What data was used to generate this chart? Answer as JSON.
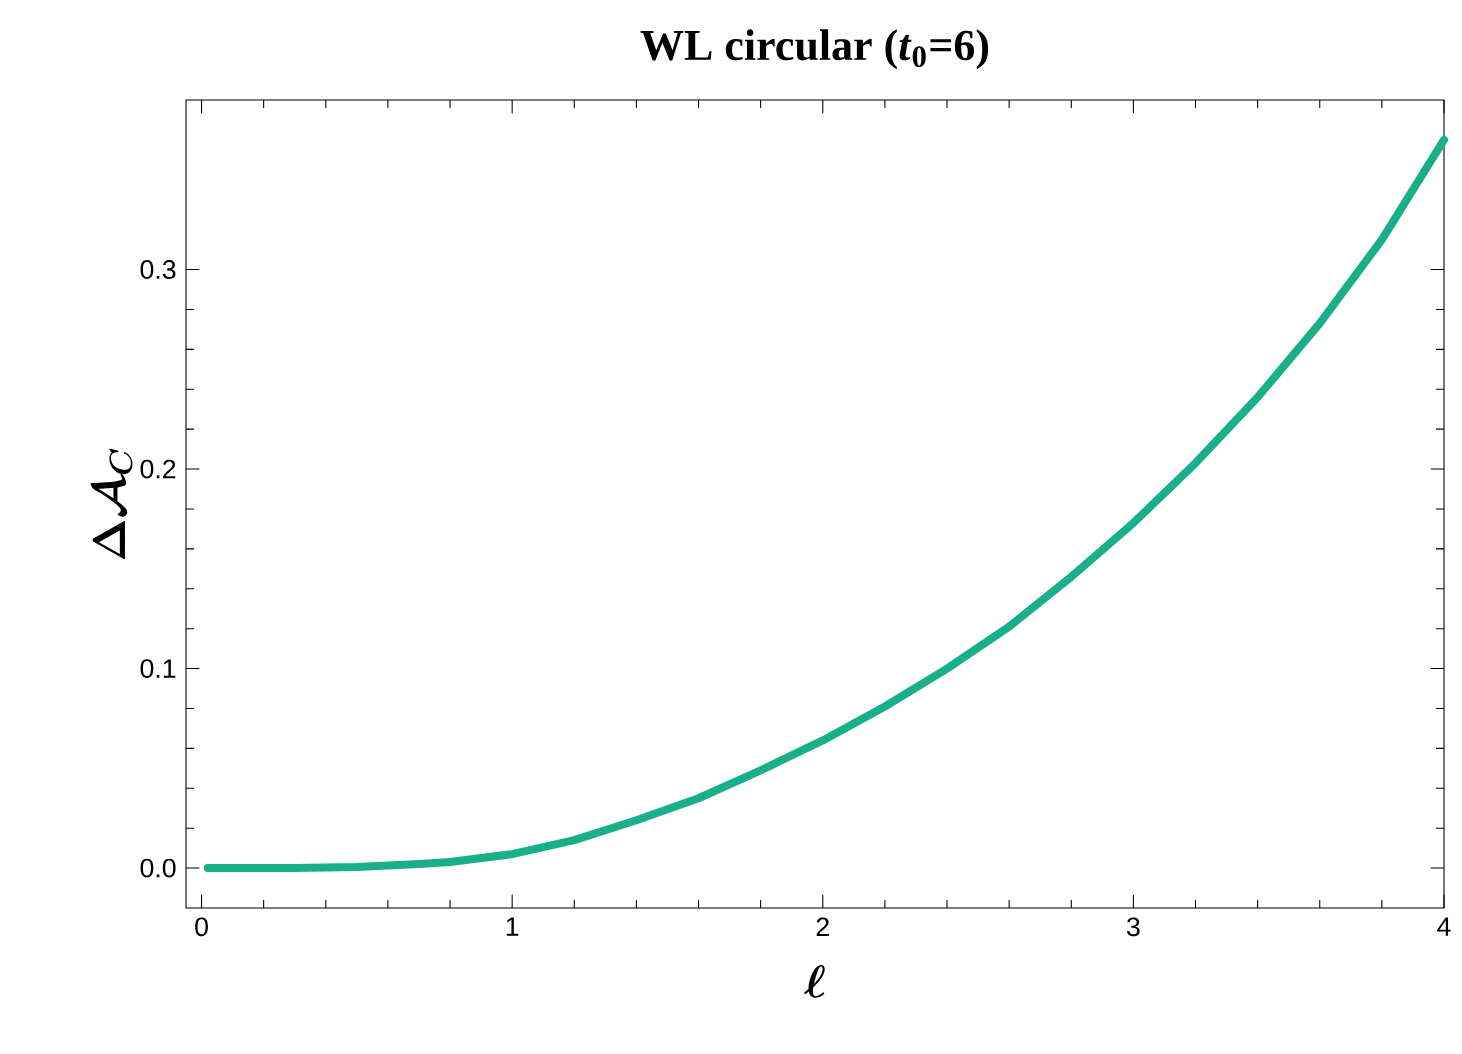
{
  "chart_data": {
    "type": "line",
    "title": "WL circular (*t*$_{0}$=6)",
    "xlabel": "\\ell",
    "ylabel": "\\Delta\\mathcal{A}_{C}",
    "xlim": [
      -0.05,
      4
    ],
    "ylim": [
      -0.02,
      0.385
    ],
    "xticks": [
      0,
      1,
      2,
      3,
      4
    ],
    "yticks": [
      {
        "value": 0,
        "label": "0.0"
      },
      {
        "value": 0.1,
        "label": "0.1"
      },
      {
        "value": 0.2,
        "label": "0.2"
      },
      {
        "value": 0.3,
        "label": "0.3"
      }
    ],
    "series": [
      {
        "color": "#1aaf8b",
        "x": [
          0.02,
          0.3,
          0.5,
          0.7,
          0.8,
          1.0,
          1.2,
          1.4,
          1.6,
          1.8,
          2.0,
          2.2,
          2.4,
          2.6,
          2.8,
          3.0,
          3.2,
          3.4,
          3.6,
          3.8,
          4.0
        ],
        "values": [
          0,
          0,
          0.0005,
          0.002,
          0.003,
          0.007,
          0.014,
          0.024,
          0.035,
          0.049,
          0.064,
          0.081,
          0.1,
          0.121,
          0.146,
          0.173,
          0.203,
          0.236,
          0.273,
          0.315,
          0.365
        ]
      }
    ]
  }
}
